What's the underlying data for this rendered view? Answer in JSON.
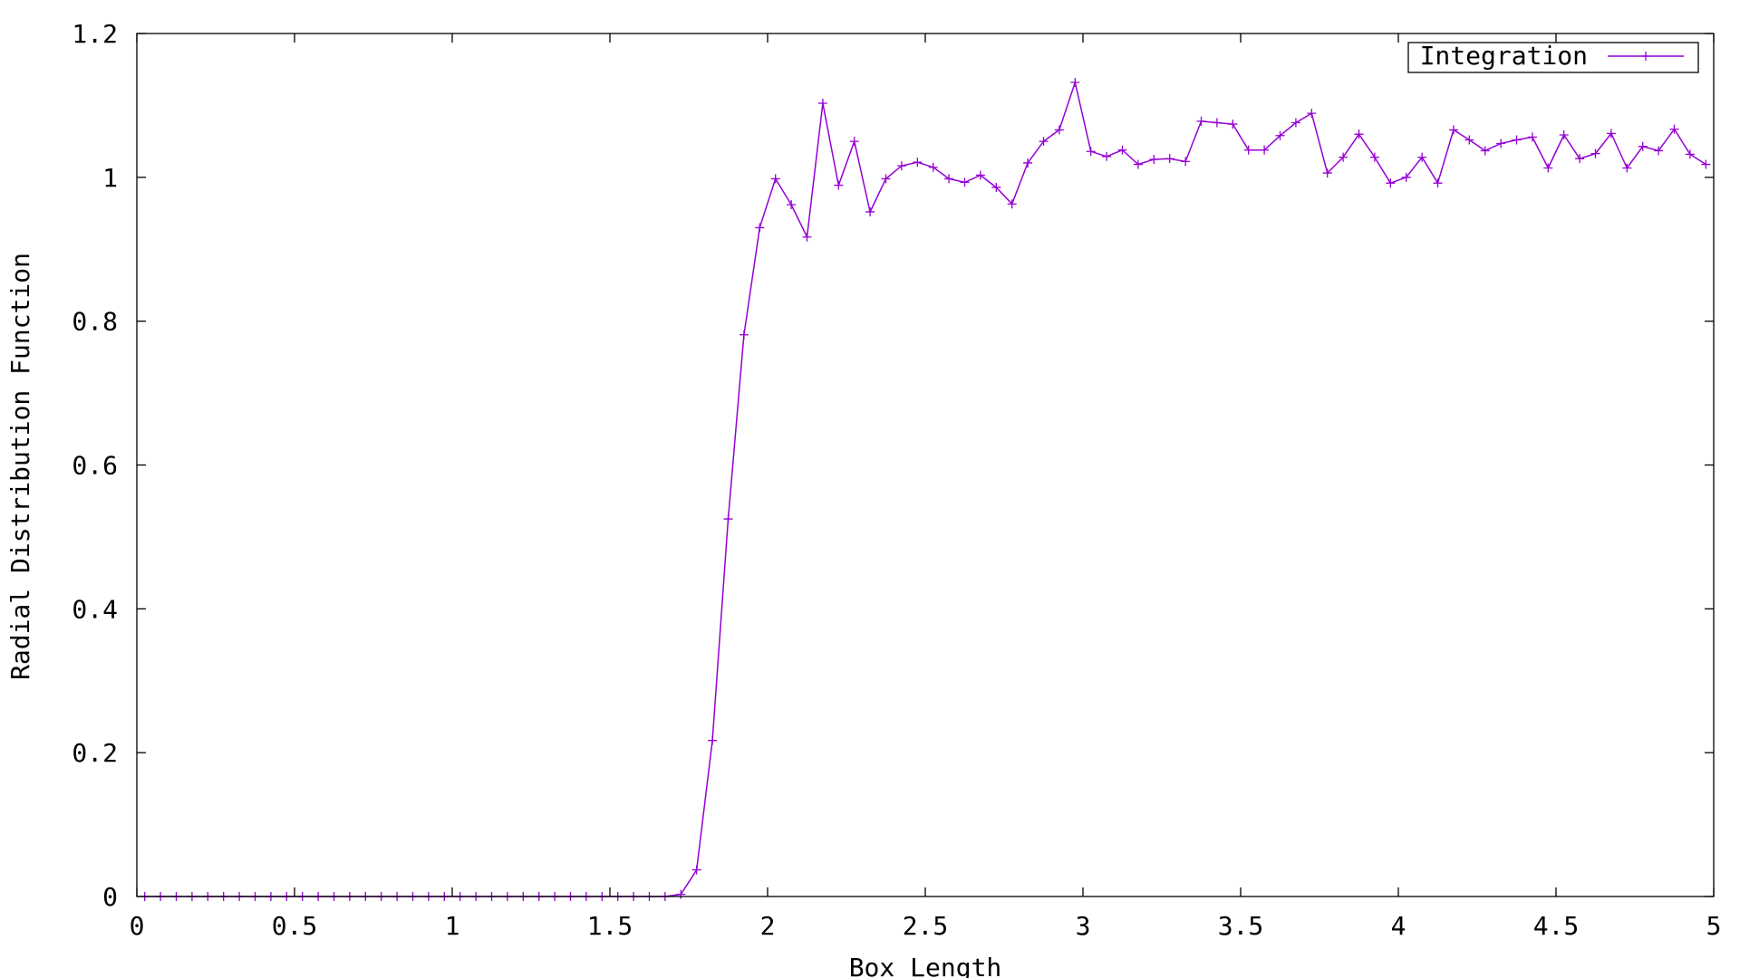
{
  "chart_data": {
    "type": "line",
    "title": "",
    "xlabel": "Box Length",
    "ylabel": "Radial Distribution Function",
    "xlim": [
      0,
      5
    ],
    "ylim": [
      0,
      1.2
    ],
    "x_ticks": [
      0,
      0.5,
      1,
      1.5,
      2,
      2.5,
      3,
      3.5,
      4,
      4.5,
      5
    ],
    "x_tick_labels": [
      "0",
      "0.5",
      "1",
      "1.5",
      "2",
      "2.5",
      "3",
      "3.5",
      "4",
      "4.5",
      "5"
    ],
    "y_ticks": [
      0,
      0.2,
      0.4,
      0.6,
      0.8,
      1,
      1.2
    ],
    "y_tick_labels": [
      "0",
      "0.2",
      "0.4",
      "0.6",
      "0.8",
      "1",
      "1.2"
    ],
    "grid": false,
    "legend": {
      "position": "top-right"
    },
    "series": [
      {
        "name": "Integration",
        "color": "#9400d3",
        "marker": "plus",
        "x": [
          0.025,
          0.075,
          0.125,
          0.175,
          0.225,
          0.275,
          0.325,
          0.375,
          0.425,
          0.475,
          0.525,
          0.575,
          0.625,
          0.675,
          0.725,
          0.775,
          0.825,
          0.875,
          0.925,
          0.975,
          1.025,
          1.075,
          1.125,
          1.175,
          1.225,
          1.275,
          1.325,
          1.375,
          1.425,
          1.475,
          1.525,
          1.575,
          1.625,
          1.675,
          1.725,
          1.775,
          1.825,
          1.875,
          1.925,
          1.975,
          2.025,
          2.075,
          2.125,
          2.175,
          2.225,
          2.275,
          2.325,
          2.375,
          2.425,
          2.475,
          2.525,
          2.575,
          2.625,
          2.675,
          2.725,
          2.775,
          2.825,
          2.875,
          2.925,
          2.975,
          3.025,
          3.075,
          3.125,
          3.175,
          3.225,
          3.275,
          3.325,
          3.375,
          3.425,
          3.475,
          3.525,
          3.575,
          3.625,
          3.675,
          3.725,
          3.775,
          3.825,
          3.875,
          3.925,
          3.975,
          4.025,
          4.075,
          4.125,
          4.175,
          4.225,
          4.275,
          4.325,
          4.375,
          4.425,
          4.475,
          4.525,
          4.575,
          4.625,
          4.675,
          4.725,
          4.775,
          4.825,
          4.875,
          4.925,
          4.975
        ],
        "y": [
          0,
          0,
          0,
          0,
          0,
          0,
          0,
          0,
          0,
          0,
          0,
          0,
          0,
          0,
          0,
          0,
          0,
          0,
          0,
          0,
          0,
          0,
          0,
          0,
          0,
          0,
          0,
          0,
          0,
          0,
          0,
          0,
          0,
          0,
          0.003,
          0.037,
          0.217,
          0.525,
          0.781,
          0.93,
          0.998,
          0.962,
          0.917,
          1.103,
          0.989,
          1.05,
          0.952,
          0.998,
          1.016,
          1.021,
          1.014,
          0.998,
          0.993,
          1.003,
          0.986,
          0.963,
          1.02,
          1.05,
          1.066,
          1.132,
          1.036,
          1.029,
          1.038,
          1.018,
          1.025,
          1.026,
          1.022,
          1.078,
          1.076,
          1.074,
          1.038,
          1.038,
          1.058,
          1.076,
          1.089,
          1.006,
          1.028,
          1.06,
          1.028,
          0.992,
          1.0,
          1.028,
          0.992,
          1.066,
          1.052,
          1.037,
          1.047,
          1.052,
          1.056,
          1.013,
          1.059,
          1.026,
          1.033,
          1.061,
          1.013,
          1.043,
          1.037,
          1.067,
          1.032,
          1.018
        ]
      }
    ]
  }
}
